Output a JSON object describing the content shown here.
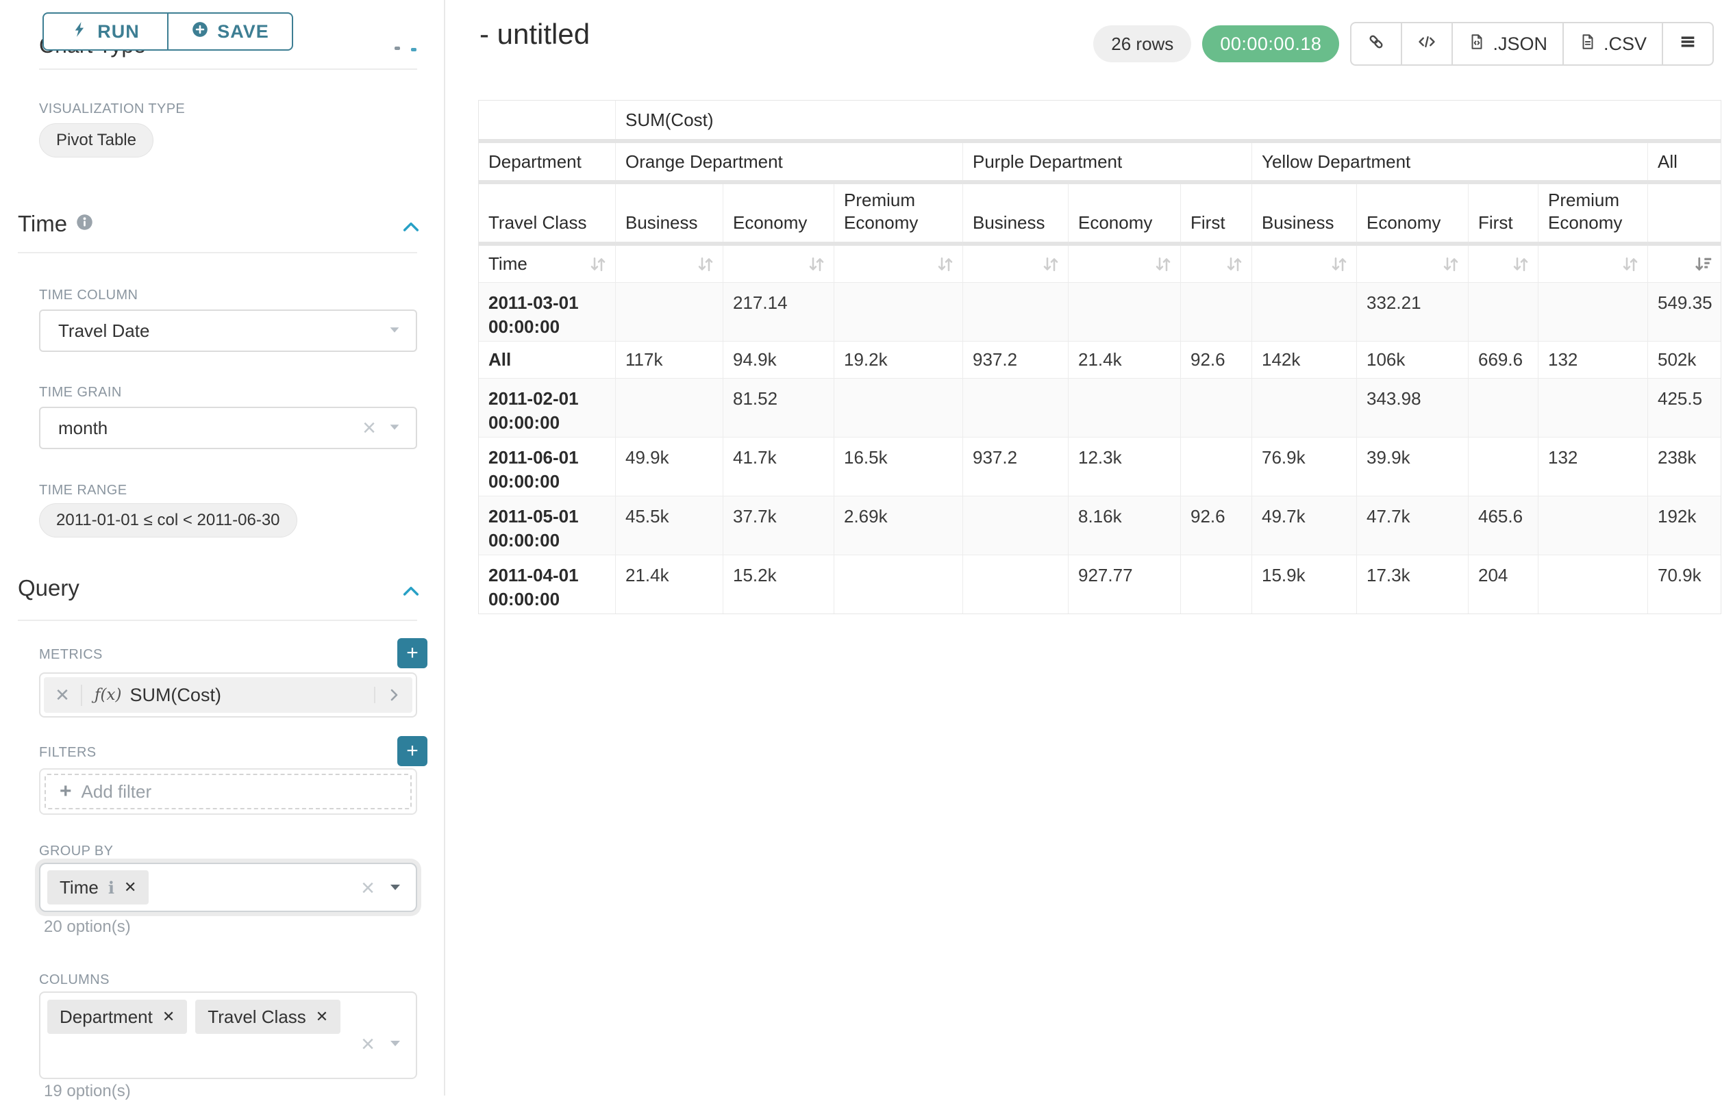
{
  "colors": {
    "accent_teal": "#3d7e93",
    "plus_button_teal": "#2e7f9b",
    "timer_green": "#69bd8b",
    "chevron_blue": "#27a0c5"
  },
  "left_panel": {
    "run_label": "RUN",
    "save_label": "SAVE",
    "chart_type_heading": "Chart Type",
    "visualization_type_label": "VISUALIZATION TYPE",
    "visualization_type_value": "Pivot Table",
    "time_section": {
      "title": "Time",
      "time_column_label": "TIME COLUMN",
      "time_column_value": "Travel Date",
      "time_grain_label": "TIME GRAIN",
      "time_grain_value": "month",
      "time_range_label": "TIME RANGE",
      "time_range_value": "2011-01-01 ≤ col < 2011-06-30"
    },
    "query_section": {
      "title": "Query",
      "metrics_label": "METRICS",
      "metric_prefix": "ƒ(x)",
      "metric_value": "SUM(Cost)",
      "filters_label": "FILTERS",
      "add_filter_label": "Add filter",
      "group_by_label": "GROUP BY",
      "group_by_values": [
        "Time"
      ],
      "group_by_options_hint": "20 option(s)",
      "columns_label": "COLUMNS",
      "columns_values": [
        "Department",
        "Travel Class"
      ],
      "columns_options_hint": "19 option(s)"
    }
  },
  "header": {
    "title": "- untitled",
    "row_count": "26 rows",
    "timer": "00:00:00.18",
    "export_json_label": ".JSON",
    "export_csv_label": ".CSV"
  },
  "pivot_table": {
    "metric_header": "SUM(Cost)",
    "department_label": "Department",
    "travel_class_label": "Travel Class",
    "time_label": "Time",
    "column_groups": [
      {
        "label": "Orange Department",
        "classes": [
          "Business",
          "Economy",
          "Premium Economy"
        ]
      },
      {
        "label": "Purple Department",
        "classes": [
          "Business",
          "Economy",
          "First"
        ]
      },
      {
        "label": "Yellow Department",
        "classes": [
          "Business",
          "Economy",
          "First",
          "Premium Economy"
        ]
      },
      {
        "label": "All",
        "classes": [
          ""
        ]
      }
    ],
    "rows": [
      {
        "time": "2011-03-01 00:00:00",
        "values": [
          "",
          "217.14",
          "",
          "",
          "",
          "",
          "",
          "332.21",
          "",
          "",
          "549.35"
        ]
      },
      {
        "time": "All",
        "values": [
          "117k",
          "94.9k",
          "19.2k",
          "937.2",
          "21.4k",
          "92.6",
          "142k",
          "106k",
          "669.6",
          "132",
          "502k"
        ]
      },
      {
        "time": "2011-02-01 00:00:00",
        "values": [
          "",
          "81.52",
          "",
          "",
          "",
          "",
          "",
          "343.98",
          "",
          "",
          "425.5"
        ]
      },
      {
        "time": "2011-06-01 00:00:00",
        "values": [
          "49.9k",
          "41.7k",
          "16.5k",
          "937.2",
          "12.3k",
          "",
          "76.9k",
          "39.9k",
          "",
          "132",
          "238k"
        ]
      },
      {
        "time": "2011-05-01 00:00:00",
        "values": [
          "45.5k",
          "37.7k",
          "2.69k",
          "",
          "8.16k",
          "92.6",
          "49.7k",
          "47.7k",
          "465.6",
          "",
          "192k"
        ]
      },
      {
        "time": "2011-04-01 00:00:00",
        "values": [
          "21.4k",
          "15.2k",
          "",
          "",
          "927.77",
          "",
          "15.9k",
          "17.3k",
          "204",
          "",
          "70.9k"
        ]
      }
    ]
  }
}
